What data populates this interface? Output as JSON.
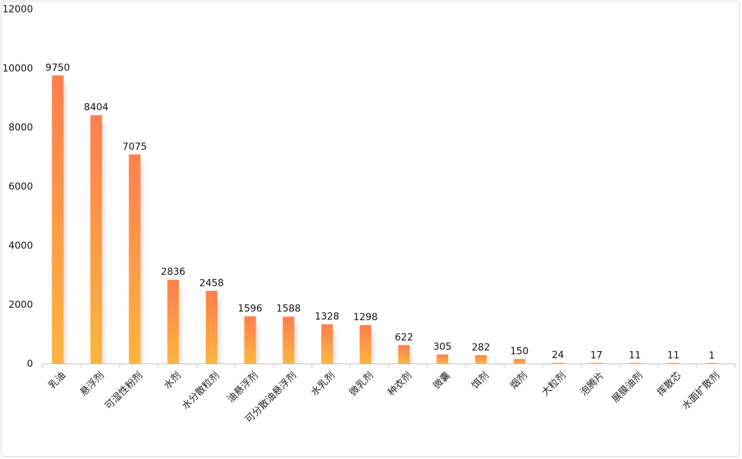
{
  "chart_data": {
    "type": "bar",
    "title": "",
    "xlabel": "",
    "ylabel": "",
    "ylim": [
      0,
      12000
    ],
    "yticks": [
      0,
      2000,
      4000,
      6000,
      8000,
      10000,
      12000
    ],
    "grid": false,
    "legend": "none",
    "colors": {
      "bar_top": "#FF7F50",
      "bar_bottom": "#FDB53F",
      "axis": "#bfbfbf"
    },
    "categories": [
      "乳油",
      "悬浮剂",
      "可湿性粉剂",
      "水剂",
      "水分散粒剂",
      "油悬浮剂",
      "可分散油悬浮剂",
      "水乳剂",
      "微乳剂",
      "种衣剂",
      "微囊",
      "饵剂",
      "烟剂",
      "大粒剂",
      "泡腾片",
      "展膜油剂",
      "挥散芯",
      "水面扩散剂"
    ],
    "values": [
      9750,
      8404,
      7075,
      2836,
      2458,
      1596,
      1588,
      1328,
      1298,
      622,
      305,
      282,
      150,
      24,
      17,
      11,
      11,
      1
    ]
  }
}
